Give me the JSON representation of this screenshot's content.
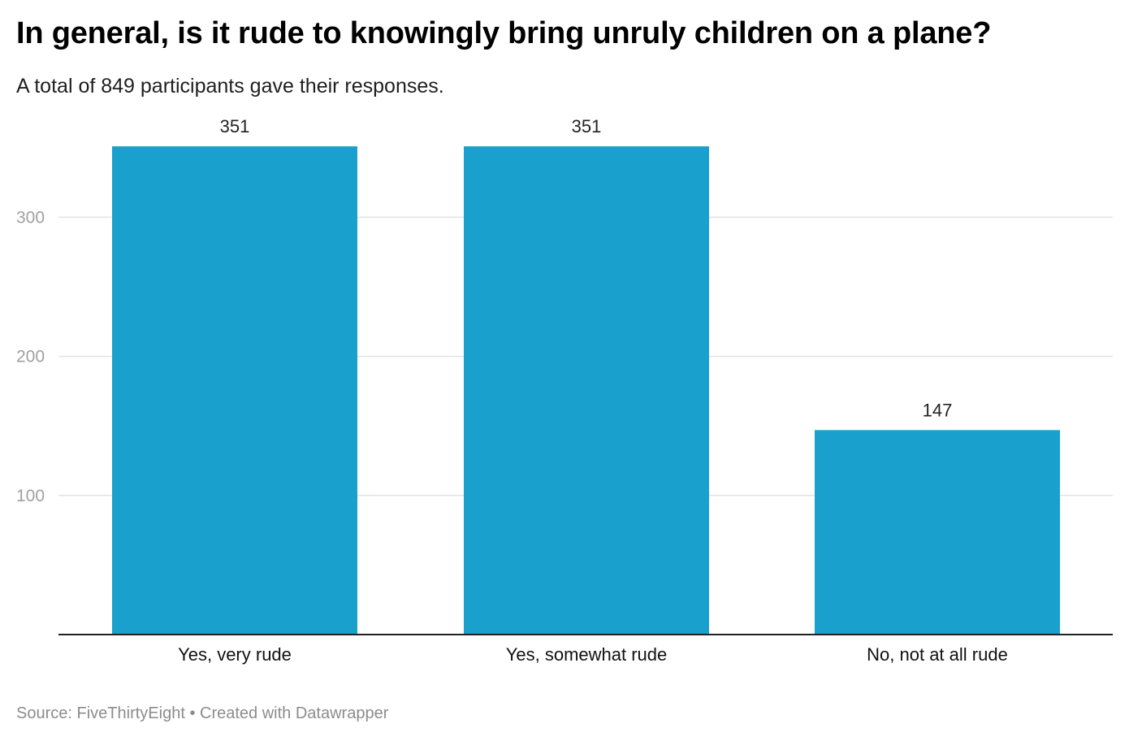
{
  "header": {
    "title": "In general, is it rude to knowingly bring unruly children on a plane?",
    "subtitle": "A total of 849 participants gave their responses."
  },
  "footer": {
    "source_label": "Source:",
    "source_name": "FiveThirtyEight",
    "separator": "•",
    "credit": "Created with Datawrapper"
  },
  "colors": {
    "bar": "#1aa0cc",
    "grid": "#e2e2e2",
    "baseline": "#222222"
  },
  "chart_data": {
    "type": "bar",
    "title": "In general, is it rude to knowingly bring unruly children on a plane?",
    "subtitle": "A total of 849 participants gave their responses.",
    "categories": [
      "Yes, very rude",
      "Yes, somewhat rude",
      "No, not at all rude"
    ],
    "values": [
      351,
      351,
      147
    ],
    "value_labels": [
      "351",
      "351",
      "147"
    ],
    "ylim": [
      0,
      350
    ],
    "yticks": [
      100,
      200,
      300
    ],
    "ytick_labels": [
      "100",
      "200",
      "300"
    ],
    "grid": true,
    "legend": "none"
  }
}
